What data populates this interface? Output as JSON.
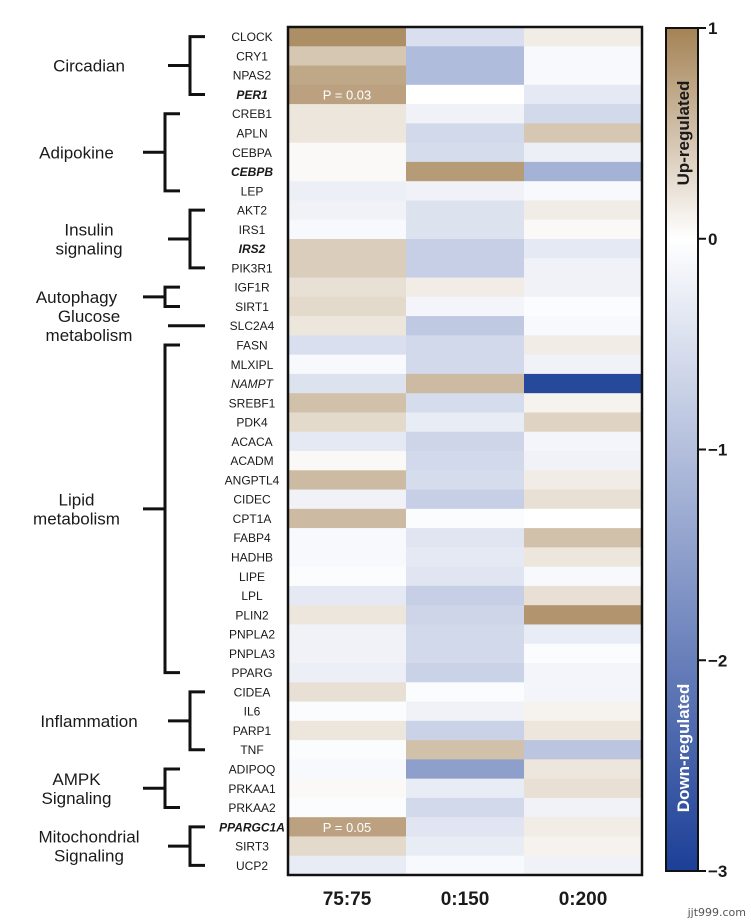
{
  "chart_data": {
    "type": "heatmap",
    "columns": [
      "75:75",
      "0:150",
      "0:200"
    ],
    "genes": [
      {
        "name": "CLOCK",
        "style": "normal",
        "values": [
          0.9,
          -0.5,
          0.15
        ]
      },
      {
        "name": "CRY1",
        "style": "normal",
        "values": [
          0.45,
          -1.05,
          -0.1
        ]
      },
      {
        "name": "NPAS2",
        "style": "normal",
        "values": [
          0.7,
          -1.05,
          -0.1
        ]
      },
      {
        "name": "PER1",
        "style": "bold-italic",
        "values": [
          0.75,
          0.0,
          -0.35
        ],
        "annotation": "P = 0.03"
      },
      {
        "name": "CREB1",
        "style": "normal",
        "values": [
          0.2,
          -0.2,
          -0.6
        ]
      },
      {
        "name": "APLN",
        "style": "normal",
        "values": [
          0.2,
          -0.6,
          0.45
        ]
      },
      {
        "name": "CEBPA",
        "style": "normal",
        "values": [
          0.05,
          -0.55,
          -0.25
        ]
      },
      {
        "name": "CEBPB",
        "style": "bold-italic",
        "values": [
          0.05,
          0.8,
          -1.2
        ]
      },
      {
        "name": "LEP",
        "style": "normal",
        "values": [
          -0.25,
          -0.2,
          -0.1
        ]
      },
      {
        "name": "AKT2",
        "style": "normal",
        "values": [
          -0.2,
          -0.45,
          0.15
        ]
      },
      {
        "name": "IRS1",
        "style": "normal",
        "values": [
          -0.1,
          -0.45,
          0.05
        ]
      },
      {
        "name": "IRS2",
        "style": "bold-italic",
        "values": [
          0.4,
          -0.75,
          -0.35
        ]
      },
      {
        "name": "PIK3R1",
        "style": "normal",
        "values": [
          0.4,
          -0.75,
          -0.2
        ]
      },
      {
        "name": "IGF1R",
        "style": "normal",
        "values": [
          0.25,
          0.15,
          -0.2
        ]
      },
      {
        "name": "SIRT1",
        "style": "normal",
        "values": [
          0.3,
          -0.15,
          -0.05
        ]
      },
      {
        "name": "SLC2A4",
        "style": "normal",
        "values": [
          0.2,
          -0.85,
          -0.1
        ]
      },
      {
        "name": "FASN",
        "style": "normal",
        "values": [
          -0.5,
          -0.6,
          0.15
        ]
      },
      {
        "name": "MLXIPL",
        "style": "normal",
        "values": [
          -0.1,
          -0.6,
          -0.2
        ]
      },
      {
        "name": "NAMPT",
        "style": "italic",
        "values": [
          -0.45,
          0.55,
          -2.85
        ]
      },
      {
        "name": "SREBF1",
        "style": "normal",
        "values": [
          0.5,
          -0.55,
          0.1
        ]
      },
      {
        "name": "PDK4",
        "style": "normal",
        "values": [
          0.3,
          -0.3,
          0.35
        ]
      },
      {
        "name": "ACACA",
        "style": "normal",
        "values": [
          -0.35,
          -0.65,
          -0.15
        ]
      },
      {
        "name": "ACADM",
        "style": "normal",
        "values": [
          0.05,
          -0.6,
          -0.2
        ]
      },
      {
        "name": "ANGPTL4",
        "style": "normal",
        "values": [
          0.55,
          -0.55,
          0.15
        ]
      },
      {
        "name": "CIDEC",
        "style": "normal",
        "values": [
          -0.2,
          -0.75,
          0.25
        ]
      },
      {
        "name": "CPT1A",
        "style": "normal",
        "values": [
          0.55,
          -0.05,
          0.0
        ]
      },
      {
        "name": "FABP4",
        "style": "normal",
        "values": [
          -0.1,
          -0.4,
          0.5
        ]
      },
      {
        "name": "HADHB",
        "style": "normal",
        "values": [
          -0.1,
          -0.35,
          0.2
        ]
      },
      {
        "name": "LIPE",
        "style": "normal",
        "values": [
          -0.05,
          -0.4,
          -0.1
        ]
      },
      {
        "name": "LPL",
        "style": "normal",
        "values": [
          -0.35,
          -0.75,
          0.25
        ]
      },
      {
        "name": "PLIN2",
        "style": "normal",
        "values": [
          0.2,
          -0.65,
          0.85
        ]
      },
      {
        "name": "PNPLA2",
        "style": "normal",
        "values": [
          -0.2,
          -0.6,
          -0.3
        ]
      },
      {
        "name": "PNPLA3",
        "style": "normal",
        "values": [
          -0.2,
          -0.6,
          -0.05
        ]
      },
      {
        "name": "PPARG",
        "style": "normal",
        "values": [
          -0.25,
          -0.7,
          -0.15
        ]
      },
      {
        "name": "CIDEA",
        "style": "normal",
        "values": [
          0.25,
          -0.05,
          -0.15
        ]
      },
      {
        "name": "IL6",
        "style": "normal",
        "values": [
          -0.05,
          -0.2,
          0.1
        ]
      },
      {
        "name": "PARP1",
        "style": "normal",
        "values": [
          0.2,
          -0.7,
          0.2
        ]
      },
      {
        "name": "TNF",
        "style": "normal",
        "values": [
          -0.05,
          0.5,
          -0.9
        ]
      },
      {
        "name": "ADIPOQ",
        "style": "normal",
        "values": [
          -0.1,
          -1.5,
          0.2
        ]
      },
      {
        "name": "PRKAA1",
        "style": "normal",
        "values": [
          0.05,
          -0.3,
          0.25
        ]
      },
      {
        "name": "PRKAA2",
        "style": "normal",
        "values": [
          -0.05,
          -0.6,
          -0.2
        ]
      },
      {
        "name": "PPARGC1A",
        "style": "bold-italic",
        "values": [
          0.75,
          -0.4,
          0.15
        ],
        "annotation": "P = 0.05"
      },
      {
        "name": "SIRT3",
        "style": "normal",
        "values": [
          0.3,
          -0.3,
          0.1
        ]
      },
      {
        "name": "UCP2",
        "style": "normal",
        "values": [
          -0.3,
          -0.1,
          -0.2
        ]
      }
    ],
    "categories": [
      {
        "lines": [
          "Circadian"
        ],
        "start": 0,
        "end": 3
      },
      {
        "lines": [
          "Adipokine"
        ],
        "start": 4,
        "end": 8
      },
      {
        "lines": [
          "Insulin",
          "signaling"
        ],
        "start": 9,
        "end": 12
      },
      {
        "lines": [
          "Autophagy"
        ],
        "start": 13,
        "end": 14
      },
      {
        "lines": [
          "Glucose",
          "metabolism"
        ],
        "start": 15,
        "end": 15
      },
      {
        "lines": [
          "Lipid",
          "metabolism"
        ],
        "start": 16,
        "end": 33
      },
      {
        "lines": [
          "Inflammation"
        ],
        "start": 34,
        "end": 37
      },
      {
        "lines": [
          "AMPK",
          "Signaling"
        ],
        "start": 38,
        "end": 40
      },
      {
        "lines": [
          "Mitochondrial",
          "Signaling"
        ],
        "start": 41,
        "end": 43
      }
    ],
    "colorbar": {
      "min": -3,
      "max": 1,
      "ticks": [
        1,
        0,
        -1,
        -2,
        -3
      ],
      "tick_labels": [
        "1",
        "0",
        "−1",
        "−2",
        "−3"
      ],
      "up_label": "Up-regulated",
      "down_label": "Down-regulated",
      "colors": {
        "up": "#a48255",
        "mid": "#ffffff",
        "down": "#1c3f97"
      }
    }
  },
  "watermark": "jjt999.com"
}
